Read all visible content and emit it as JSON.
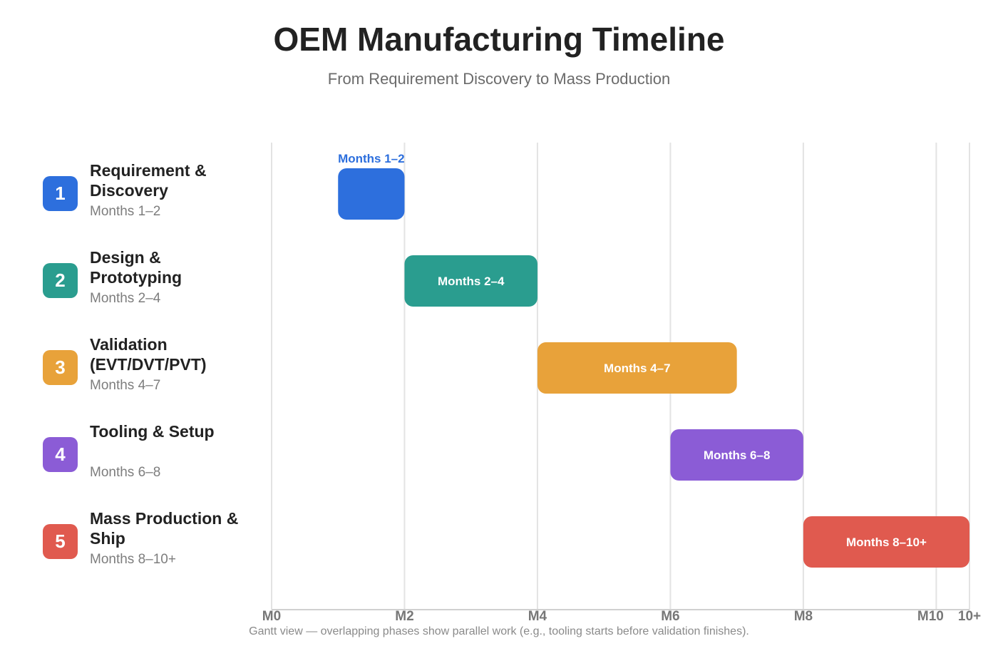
{
  "header": {
    "title": "OEM Manufacturing Timeline",
    "subtitle": "From Requirement Discovery to Mass Production"
  },
  "phases": [
    {
      "number": "1",
      "name": "Requirement & Discovery",
      "period": "Months 1–2",
      "color": "#2D6FDD"
    },
    {
      "number": "2",
      "name": "Design & Prototyping",
      "period": "Months 2–4",
      "color": "#2A9D8F"
    },
    {
      "number": "3",
      "name": "Validation (EVT/DVT/PVT)",
      "period": "Months 4–7",
      "color": "#E8A23A"
    },
    {
      "number": "4",
      "name": "Tooling & Setup",
      "period": "Months 6–8",
      "color": "#8B5CD6"
    },
    {
      "number": "5",
      "name": "Mass Production & Ship",
      "period": "Months 8–10+",
      "color": "#E05A4F"
    }
  ],
  "chart_data": {
    "type": "gantt",
    "xlim": [
      0,
      10.5
    ],
    "x_ticks": [
      {
        "value": 0,
        "label": "M0"
      },
      {
        "value": 2,
        "label": "M2"
      },
      {
        "value": 4,
        "label": "M4"
      },
      {
        "value": 6,
        "label": "M6"
      },
      {
        "value": 8,
        "label": "M8"
      },
      {
        "value": 10,
        "label": "M10"
      },
      {
        "value": 10.5,
        "label": "10+"
      }
    ],
    "bars": [
      {
        "phase": "Requirement & Discovery",
        "start": 1,
        "end": 2,
        "label": "Months 1–2",
        "label_position": "above"
      },
      {
        "phase": "Design & Prototyping",
        "start": 2,
        "end": 4,
        "label": "Months 2–4",
        "label_position": "inside"
      },
      {
        "phase": "Validation (EVT/DVT/PVT)",
        "start": 4,
        "end": 7,
        "label": "Months 4–7",
        "label_position": "inside"
      },
      {
        "phase": "Tooling & Setup",
        "start": 6,
        "end": 8,
        "label": "Months 6–8",
        "label_position": "inside"
      },
      {
        "phase": "Mass Production & Ship",
        "start": 8,
        "end": 10.5,
        "label": "Months 8–10+",
        "label_position": "inside"
      }
    ],
    "grid": true
  },
  "footnote": "Gantt view — overlapping phases show parallel work (e.g., tooling starts before validation finishes)."
}
